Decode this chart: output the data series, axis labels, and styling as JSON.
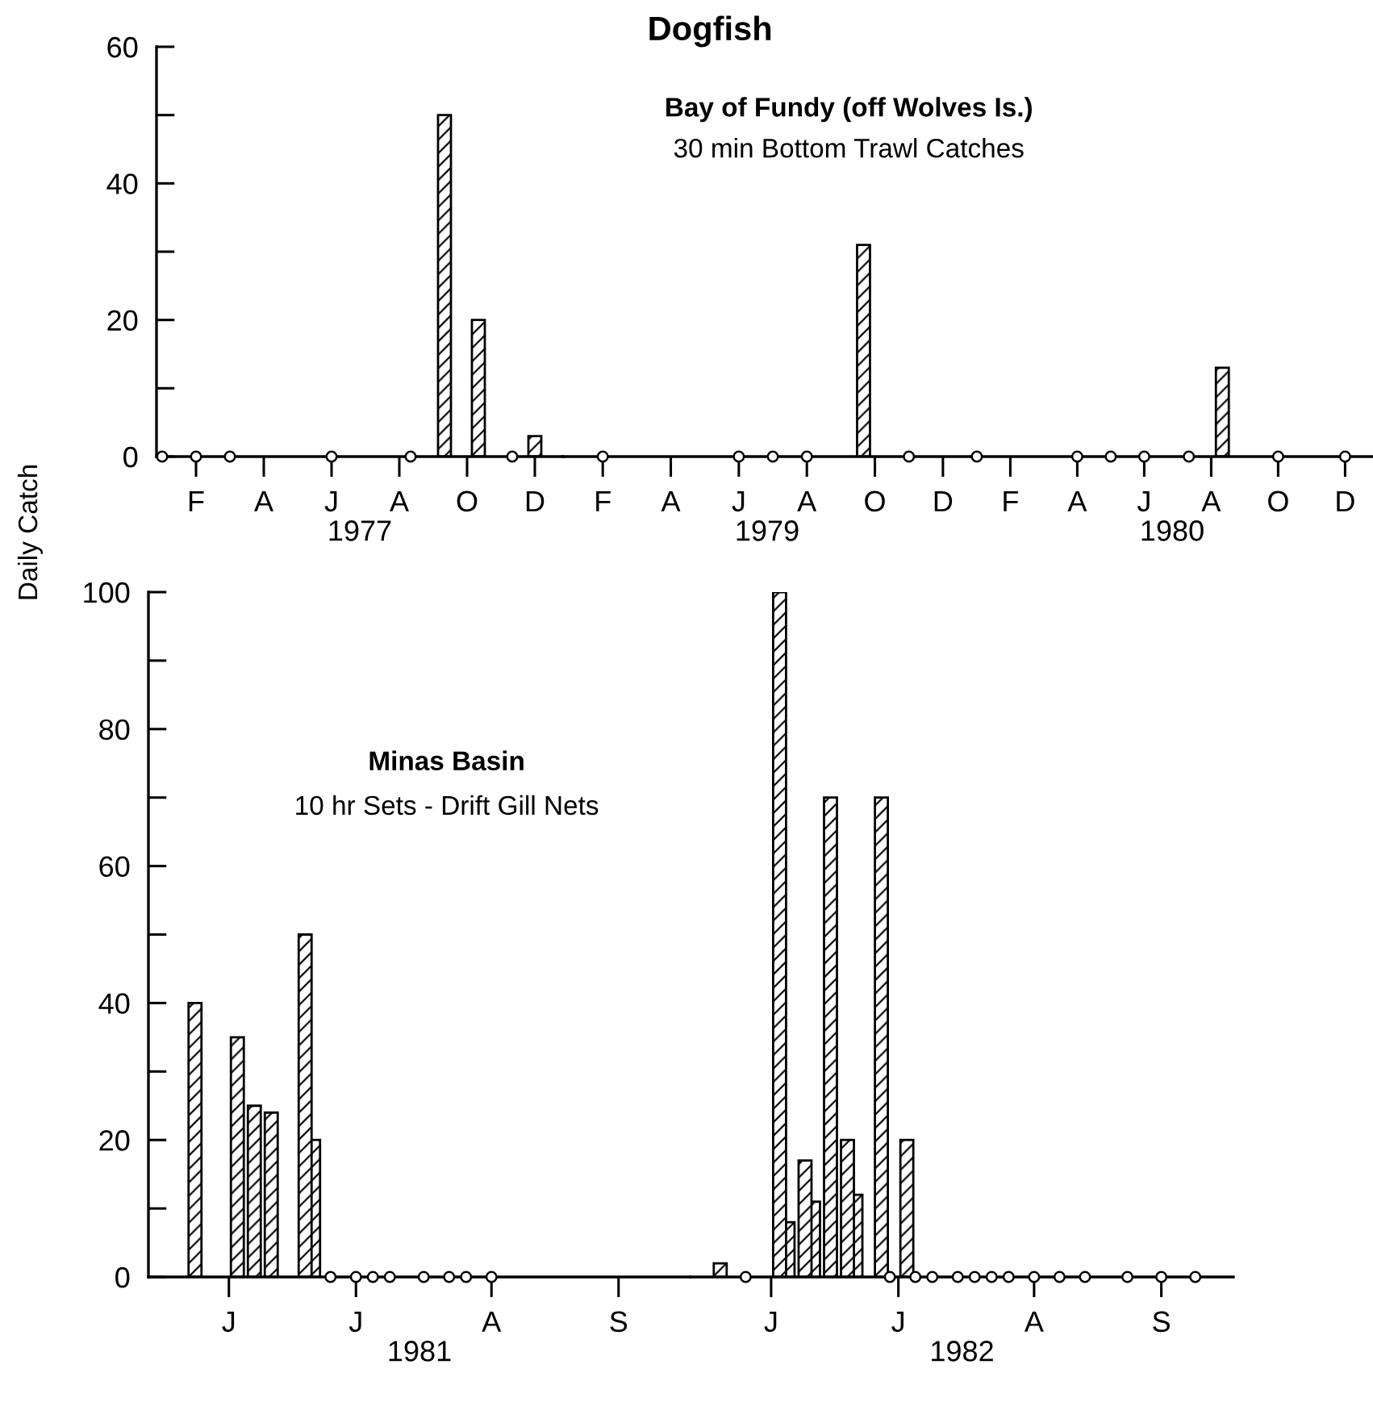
{
  "chart_data": [
    {
      "type": "bar",
      "xlabel": "1977",
      "ylabel": "Daily Catch",
      "categories": [
        null,
        null,
        null,
        "F",
        null,
        null,
        null,
        null,
        null,
        "A",
        null,
        null,
        null,
        null,
        null,
        "J",
        null,
        null,
        null,
        null,
        null,
        "A",
        null,
        null,
        null,
        null,
        null,
        "O",
        null,
        null,
        null,
        null,
        null,
        "D",
        null,
        null
      ],
      "series": [
        {
          "color": "#000000",
          "values": [
            null,
            null,
            null,
            null,
            null,
            null,
            null,
            null,
            null,
            null,
            null,
            null,
            null,
            null,
            null,
            null,
            null,
            null,
            null,
            null,
            null,
            null,
            null,
            null,
            null,
            50,
            null,
            null,
            20,
            null,
            null,
            null,
            null,
            3,
            null,
            null
          ]
        },
        {
          "type": "scatter",
          "color": "#000000",
          "marker": "circle",
          "values": [
            0,
            null,
            null,
            0,
            null,
            null,
            0,
            null,
            null,
            null,
            null,
            null,
            null,
            null,
            null,
            0,
            null,
            null,
            null,
            null,
            null,
            null,
            0,
            null,
            null,
            null,
            null,
            null,
            null,
            null,
            null,
            0,
            null,
            null,
            null,
            null
          ]
        }
      ],
      "ylim": [
        0,
        60
      ],
      "yticks": [
        0,
        {
          "value": 10,
          "label": null
        },
        20,
        {
          "value": 30,
          "label": null
        },
        40,
        {
          "value": 50,
          "label": null
        },
        60
      ],
      "grid": false,
      "legend": false
    },
    {
      "type": "bar",
      "title": "Dogfish",
      "subtitle": "Bay of Fundy (off Wolves Is.)",
      "annotations": [
        "30 min Bottom Trawl Catches"
      ],
      "xlabel": "1979",
      "categories": [
        null,
        null,
        null,
        "F",
        null,
        null,
        null,
        null,
        null,
        "A",
        null,
        null,
        null,
        null,
        null,
        "J",
        null,
        null,
        null,
        null,
        null,
        "A",
        null,
        null,
        null,
        null,
        null,
        "O",
        null,
        null,
        null,
        null,
        null,
        "D",
        null,
        null
      ],
      "series": [
        {
          "color": "#000000",
          "values": [
            null,
            null,
            null,
            null,
            null,
            null,
            null,
            null,
            null,
            null,
            null,
            null,
            null,
            null,
            null,
            null,
            null,
            null,
            null,
            null,
            null,
            null,
            null,
            null,
            null,
            null,
            31,
            null,
            null,
            null,
            null,
            null,
            null,
            null,
            null,
            null
          ]
        },
        {
          "type": "scatter",
          "color": "#000000",
          "marker": "circle",
          "values": [
            null,
            null,
            null,
            0,
            null,
            null,
            null,
            null,
            null,
            null,
            null,
            null,
            null,
            null,
            null,
            0,
            null,
            null,
            0,
            null,
            null,
            0,
            null,
            null,
            null,
            null,
            null,
            null,
            null,
            null,
            0,
            null,
            null,
            null,
            null,
            null
          ]
        }
      ],
      "ylim": [
        0,
        60
      ],
      "tick_labels": "x",
      "grid": false,
      "legend": false
    },
    {
      "type": "bar",
      "xlabel": "1980",
      "categories": [
        null,
        null,
        null,
        "F",
        null,
        null,
        null,
        null,
        null,
        "A",
        null,
        null,
        null,
        null,
        null,
        "J",
        null,
        null,
        null,
        null,
        null,
        "A",
        null,
        null,
        null,
        null,
        null,
        "O",
        null,
        null,
        null,
        null,
        null,
        "D",
        null,
        null
      ],
      "series": [
        {
          "color": "#000000",
          "values": [
            null,
            null,
            null,
            null,
            null,
            null,
            null,
            null,
            null,
            null,
            null,
            null,
            null,
            null,
            null,
            null,
            null,
            null,
            null,
            null,
            null,
            null,
            13,
            null,
            null,
            null,
            null,
            null,
            null,
            null,
            null,
            null,
            null,
            null,
            null,
            null
          ]
        },
        {
          "type": "scatter",
          "color": "#000000",
          "marker": "circle",
          "values": [
            0,
            null,
            null,
            null,
            null,
            null,
            null,
            null,
            null,
            0,
            null,
            null,
            0,
            null,
            null,
            0,
            null,
            null,
            null,
            0,
            null,
            null,
            null,
            null,
            null,
            null,
            null,
            0,
            null,
            null,
            null,
            null,
            null,
            0,
            null,
            null
          ]
        }
      ],
      "ylim": [
        0,
        60
      ],
      "tick_labels": "x",
      "grid": false,
      "legend": false
    },
    {
      "type": "bar",
      "subtitle": "Minas Basin",
      "annotations": [
        "10 hr Sets - Drift Gill Nets"
      ],
      "xlabel": "1981",
      "categories": [
        null,
        null,
        null,
        null,
        null,
        null,
        null,
        null,
        null,
        "J",
        null,
        null,
        null,
        null,
        null,
        null,
        null,
        null,
        null,
        null,
        null,
        null,
        null,
        null,
        "J",
        null,
        null,
        null,
        null,
        null,
        null,
        null,
        null,
        null,
        null,
        null,
        null,
        null,
        null,
        null,
        "A",
        null,
        null,
        null,
        null,
        null,
        null,
        null,
        null,
        null,
        null,
        null,
        null,
        null,
        null,
        "S",
        null,
        null,
        null,
        null,
        null,
        null,
        null,
        null
      ],
      "series": [
        {
          "color": "#000000",
          "values": [
            null,
            null,
            null,
            null,
            null,
            40,
            null,
            null,
            null,
            null,
            35,
            null,
            25,
            null,
            24,
            null,
            null,
            null,
            50,
            20,
            null,
            null,
            null,
            null,
            null,
            null,
            null,
            null,
            null,
            null,
            null,
            null,
            null,
            null,
            null,
            null,
            null,
            null,
            null,
            null,
            null,
            null,
            null,
            null,
            null,
            null,
            null,
            null,
            null,
            null,
            null,
            null,
            null,
            null,
            null,
            null,
            null,
            null,
            null,
            null,
            null,
            null,
            null,
            null
          ]
        },
        {
          "type": "scatter",
          "color": "#000000",
          "marker": "circle",
          "values": [
            null,
            null,
            null,
            null,
            null,
            null,
            null,
            null,
            null,
            null,
            null,
            null,
            null,
            null,
            null,
            null,
            null,
            null,
            null,
            null,
            null,
            0,
            null,
            null,
            0,
            null,
            0,
            null,
            0,
            null,
            null,
            null,
            0,
            null,
            null,
            0,
            null,
            0,
            null,
            null,
            0,
            null,
            null,
            null,
            null,
            null,
            null,
            null,
            null,
            null,
            null,
            null,
            null,
            null,
            null,
            null,
            null,
            null,
            null,
            null,
            null,
            null,
            null,
            null
          ]
        }
      ],
      "ylim": [
        0,
        100
      ],
      "yticks": [
        0,
        {
          "value": 10,
          "label": null
        },
        20,
        {
          "value": 30,
          "label": null
        },
        40,
        {
          "value": 50,
          "label": null
        },
        60,
        {
          "value": 70,
          "label": null
        },
        80,
        {
          "value": 90,
          "label": null
        },
        100
      ],
      "grid": false,
      "legend": false
    },
    {
      "type": "bar",
      "xlabel": "1982",
      "categories": [
        null,
        null,
        null,
        null,
        null,
        null,
        null,
        null,
        null,
        "J",
        null,
        null,
        null,
        null,
        null,
        null,
        null,
        null,
        null,
        null,
        null,
        null,
        null,
        null,
        "J",
        null,
        null,
        null,
        null,
        null,
        null,
        null,
        null,
        null,
        null,
        null,
        null,
        null,
        null,
        null,
        "A",
        null,
        null,
        null,
        null,
        null,
        null,
        null,
        null,
        null,
        null,
        null,
        null,
        null,
        null,
        "S",
        null,
        null,
        null,
        null,
        null,
        null,
        null,
        null
      ],
      "series": [
        {
          "color": "#000000",
          "values": [
            null,
            null,
            null,
            2,
            null,
            null,
            null,
            null,
            null,
            null,
            100,
            8,
            null,
            17,
            11,
            null,
            70,
            null,
            20,
            12,
            null,
            null,
            70,
            null,
            null,
            20,
            null,
            null,
            null,
            null,
            null,
            null,
            null,
            null,
            null,
            null,
            null,
            null,
            null,
            null,
            null,
            null,
            null,
            null,
            null,
            null,
            null,
            null,
            null,
            null,
            null,
            null,
            null,
            null,
            null,
            null,
            null,
            null,
            null,
            null,
            null,
            null,
            null,
            null
          ]
        },
        {
          "type": "scatter",
          "color": "#000000",
          "marker": "circle",
          "values": [
            null,
            null,
            null,
            null,
            null,
            null,
            0,
            null,
            null,
            null,
            null,
            null,
            null,
            null,
            null,
            null,
            null,
            null,
            null,
            null,
            null,
            null,
            null,
            0,
            null,
            null,
            0,
            null,
            0,
            null,
            null,
            0,
            null,
            0,
            null,
            0,
            null,
            0,
            null,
            null,
            0,
            null,
            null,
            0,
            null,
            null,
            0,
            null,
            null,
            null,
            null,
            0,
            null,
            null,
            null,
            0,
            null,
            null,
            null,
            0,
            null,
            null,
            null,
            null
          ]
        }
      ],
      "ylim": [
        0,
        100
      ],
      "tick_labels": "x",
      "grid": false,
      "legend": false
    }
  ]
}
